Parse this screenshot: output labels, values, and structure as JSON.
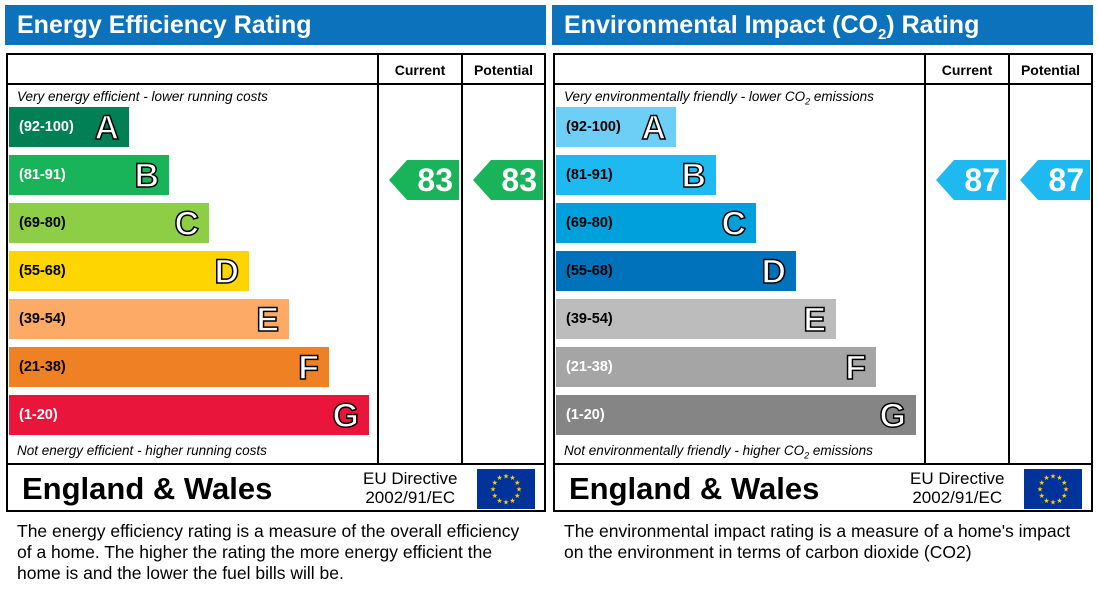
{
  "panels": [
    {
      "title": "Energy Efficiency Rating",
      "title_sub": "",
      "title_suffix": "",
      "col_current": "Current",
      "col_potential": "Potential",
      "top_note": "Very energy efficient - lower running costs",
      "top_note_sub": "",
      "top_note_suffix": "",
      "bottom_note": "Not energy efficient - higher running costs",
      "bottom_note_sub": "",
      "bottom_note_suffix": "",
      "region": "England & Wales",
      "directive_line1": "EU Directive",
      "directive_line2": "2002/91/EC",
      "description": "The energy efficiency rating is a measure of the overall efficiency of a home.  The higher the rating the more energy efficient the home is and the lower the fuel bills will be.",
      "current": "83",
      "potential": "83",
      "arrow_color": "#19b459"
    },
    {
      "title": "Environmental Impact (CO",
      "title_sub": "2",
      "title_suffix": ") Rating",
      "col_current": "Current",
      "col_potential": "Potential",
      "top_note": "Very environmentally friendly - lower CO",
      "top_note_sub": "2",
      "top_note_suffix": " emissions",
      "bottom_note": "Not environmentally friendly - higher CO",
      "bottom_note_sub": "2",
      "bottom_note_suffix": " emissions",
      "region": "England & Wales",
      "directive_line1": "EU Directive",
      "directive_line2": "2002/91/EC",
      "description": "The environmental impact rating is a measure of a home's impact on the environment in terms of carbon dioxide (CO2)",
      "current": "87",
      "potential": "87",
      "arrow_color": "#1fb9f2"
    }
  ],
  "chart_data": [
    {
      "type": "bar",
      "title": "Energy Efficiency Rating",
      "categories": [
        "A",
        "B",
        "C",
        "D",
        "E",
        "F",
        "G"
      ],
      "ranges": [
        "(92-100)",
        "(81-91)",
        "(69-80)",
        "(55-68)",
        "(39-54)",
        "(21-38)",
        "(1-20)"
      ],
      "colors": [
        "#008054",
        "#19b459",
        "#8dce46",
        "#ffd500",
        "#fcaa65",
        "#ef8023",
        "#e9153b"
      ],
      "range_text_colors": [
        "#fff",
        "#fff",
        "#000",
        "#000",
        "#000",
        "#000",
        "#fff"
      ],
      "current": 83,
      "current_band": "B",
      "potential": 83,
      "potential_band": "B"
    },
    {
      "type": "bar",
      "title": "Environmental Impact (CO2) Rating",
      "categories": [
        "A",
        "B",
        "C",
        "D",
        "E",
        "F",
        "G"
      ],
      "ranges": [
        "(92-100)",
        "(81-91)",
        "(69-80)",
        "(55-68)",
        "(39-54)",
        "(21-38)",
        "(1-20)"
      ],
      "colors": [
        "#6dcff6",
        "#1fb9f2",
        "#00a0dc",
        "#0072bb",
        "#bcbcbc",
        "#a5a5a5",
        "#858585"
      ],
      "range_text_colors": [
        "#000",
        "#000",
        "#000",
        "#000",
        "#000",
        "#fff",
        "#fff"
      ],
      "current": 87,
      "current_band": "B",
      "potential": 87,
      "potential_band": "B"
    }
  ]
}
